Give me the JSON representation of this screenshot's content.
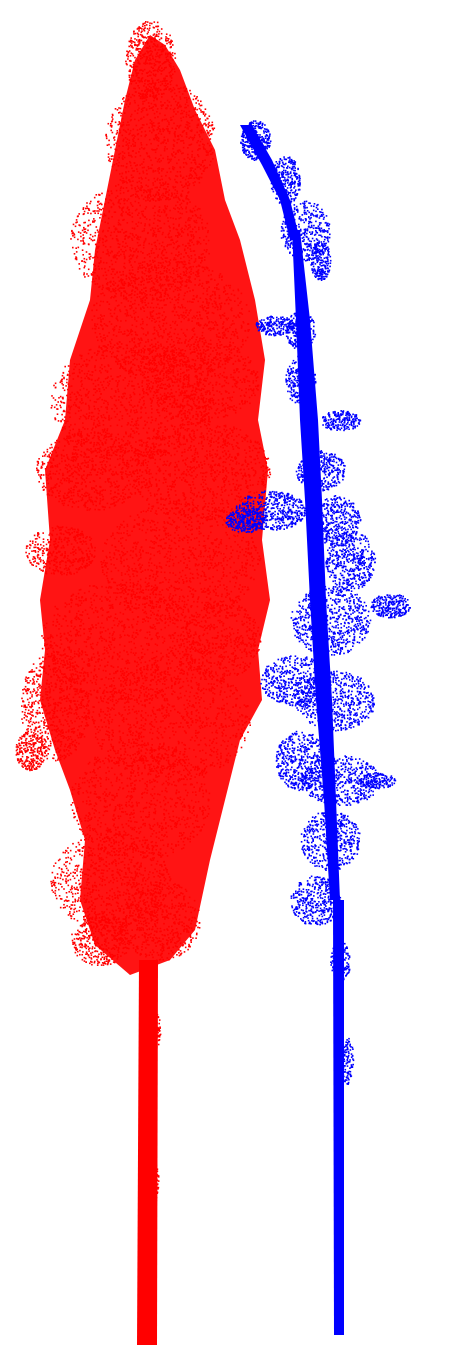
{
  "scene": {
    "background": "#ffffff",
    "trees": [
      {
        "id": "red-tree",
        "color": "#ff0000"
      },
      {
        "id": "blue-tree",
        "color": "#0000ff"
      }
    ]
  }
}
